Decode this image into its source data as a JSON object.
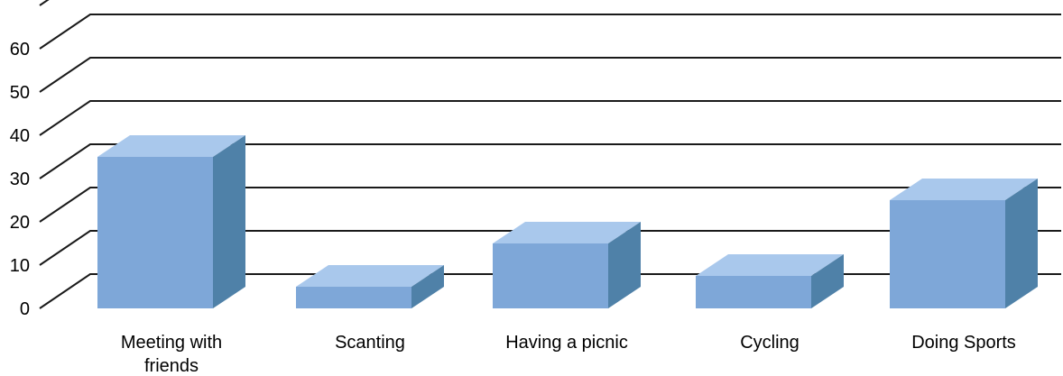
{
  "chart_data": {
    "type": "bar",
    "style": "3d-column",
    "categories": [
      "Meeting with friends",
      "Scanting",
      "Having a picnic",
      "Cycling",
      "Doing Sports"
    ],
    "category_label_lines": [
      [
        "Meeting with",
        "friends"
      ],
      [
        "Scanting"
      ],
      [
        "Having a picnic"
      ],
      [
        "Cycling"
      ],
      [
        "Doing Sports"
      ]
    ],
    "values": [
      35,
      5,
      15,
      7.5,
      25
    ],
    "yticks": [
      0,
      10,
      20,
      30,
      40,
      50,
      60
    ],
    "ylim": [
      0,
      70
    ],
    "title": "",
    "xlabel": "",
    "ylabel": "",
    "grid": true,
    "legend": "none",
    "colors": {
      "front": "#7ea7d8",
      "top": "#a9c8ec",
      "side": "#4f81a8",
      "grid": "#1a1a1a"
    }
  }
}
